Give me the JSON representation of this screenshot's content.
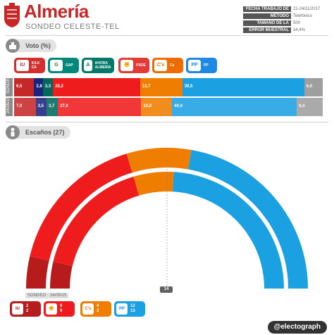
{
  "header": {
    "title": "Almería",
    "subtitle": "SONDEO CELESTE-TEL",
    "meta": [
      {
        "label": "FECHA TRABAJO DE CAMPO",
        "value": "21-24/11/2017"
      },
      {
        "label": "MÉTODO",
        "value": "Telefónico"
      },
      {
        "label": "TAMAÑO DE LA MUESTRA",
        "value": "500"
      },
      {
        "label": "ERROR MUESTRAL",
        "value": "±4,4%"
      }
    ]
  },
  "vote_section": {
    "label": "Voto (%)",
    "icon": "ballot-box-icon"
  },
  "seats_section": {
    "label": "Escaños (27)",
    "icon": "person-icon"
  },
  "parties": [
    {
      "name": "IULV-CA",
      "color": "#d32f2f"
    },
    {
      "name": "GAP",
      "color": "#00897b"
    },
    {
      "name": "AHORA ALMERÍA",
      "color": "#00796b"
    },
    {
      "name": "PSOE",
      "color": "#e53935"
    },
    {
      "name": "Cs",
      "color": "#ef6c00"
    },
    {
      "name": "PP",
      "color": "#1e88e5"
    }
  ],
  "chart_data": [
    {
      "type": "bar",
      "title": "Voto (%)",
      "rows": [
        "SONDEO",
        "24/05/15"
      ],
      "series": [
        {
          "color": "#c62828",
          "values": [
            6.5,
            7.0
          ],
          "labels": [
            "6,5",
            "7,0"
          ]
        },
        {
          "color": "#1a237e",
          "values": [
            2.8,
            3.5
          ],
          "labels": [
            "2,8",
            "3,5"
          ]
        },
        {
          "color": "#00695c",
          "values": [
            3.3,
            3.7
          ],
          "labels": [
            "3,3",
            "3,7"
          ]
        },
        {
          "color": "#ee1c1c",
          "values": [
            28.2,
            27.0
          ],
          "labels": [
            "28,2",
            "27,0"
          ]
        },
        {
          "color": "#ef7d00",
          "values": [
            13.7,
            10.0
          ],
          "labels": [
            "13,7",
            "10,0"
          ]
        },
        {
          "color": "#1ba1e2",
          "values": [
            39.5,
            40.4
          ],
          "labels": [
            "39,5",
            "40,4"
          ]
        },
        {
          "color": "#9e9e9e",
          "values": [
            6.0,
            8.4
          ],
          "labels": [
            "6,0",
            "8,4"
          ]
        }
      ]
    },
    {
      "type": "pie",
      "title": "Escaños (27)",
      "rows": [
        "SONDEO",
        "24/05/15"
      ],
      "total": 27,
      "majority": 14,
      "majority_label": "14",
      "series": [
        {
          "color": "#b71c1c",
          "values": [
            2,
            2
          ],
          "labels": [
            "2",
            "2"
          ]
        },
        {
          "color": "#ee1c1c",
          "values": [
            9,
            9
          ],
          "labels": [
            "9",
            "9"
          ]
        },
        {
          "color": "#ef7d00",
          "values": [
            4,
            3
          ],
          "labels": [
            "4",
            "3"
          ]
        },
        {
          "color": "#1ba1e2",
          "values": [
            12,
            13
          ],
          "labels": [
            "12",
            "13"
          ]
        }
      ]
    }
  ],
  "footer": {
    "brand": "@electograph"
  }
}
